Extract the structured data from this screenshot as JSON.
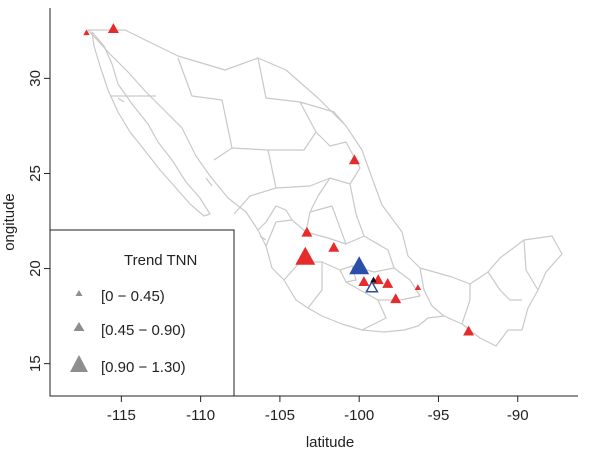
{
  "axes": {
    "xlabel": "latitude",
    "ylabel": "ongitude",
    "xlim": [
      -119.5,
      -86.2
    ],
    "ylim": [
      13.3,
      33.7
    ],
    "xticks": [
      "-115",
      "-110",
      "-105",
      "-100",
      "-95",
      "-90"
    ],
    "xtick_values": [
      -115,
      -110,
      -105,
      -100,
      -95,
      -90
    ],
    "yticks": [
      "15",
      "20",
      "25",
      "30"
    ],
    "ytick_values": [
      15,
      20,
      25,
      30
    ]
  },
  "legend": {
    "title": "Trend TNN",
    "entries": [
      {
        "label": "[0 − 0.45)",
        "size_class": "small"
      },
      {
        "label": "[0.45 − 0.90)",
        "size_class": "medium"
      },
      {
        "label": "[0.90 − 1.30)",
        "size_class": "large"
      }
    ],
    "placement": "bottom-left"
  },
  "colors": {
    "positive": "#e52b2b",
    "negative": "#2a4fa8",
    "legend_marker": "#8e8e8e",
    "border": "#c9c9c9"
  },
  "chart_data": {
    "type": "scatter",
    "title": "",
    "xlabel": "latitude",
    "ylabel": "ongitude",
    "marker": "triangle",
    "series": [
      {
        "name": "",
        "color": "#e52b2b",
        "points": [
          {
            "x": -117.2,
            "y": 32.4,
            "trend_class": "small"
          },
          {
            "x": -115.5,
            "y": 32.6,
            "trend_class": "medium"
          },
          {
            "x": -100.3,
            "y": 25.7,
            "trend_class": "medium"
          },
          {
            "x": -103.3,
            "y": 21.9,
            "trend_class": "medium"
          },
          {
            "x": -101.6,
            "y": 21.1,
            "trend_class": "medium"
          },
          {
            "x": -103.4,
            "y": 20.6,
            "trend_class": "large"
          },
          {
            "x": -99.7,
            "y": 19.3,
            "trend_class": "medium"
          },
          {
            "x": -98.8,
            "y": 19.4,
            "trend_class": "medium"
          },
          {
            "x": -98.2,
            "y": 19.2,
            "trend_class": "medium"
          },
          {
            "x": -97.7,
            "y": 18.4,
            "trend_class": "medium"
          },
          {
            "x": -96.3,
            "y": 19.0,
            "trend_class": "small"
          },
          {
            "x": -93.1,
            "y": 16.7,
            "trend_class": "medium"
          }
        ]
      },
      {
        "name": "",
        "color": "#2a4fa8",
        "points": [
          {
            "x": -100.0,
            "y": 20.1,
            "trend_class": "large"
          },
          {
            "x": -99.2,
            "y": 19.0,
            "trend_class": "medium",
            "hollow": true
          }
        ]
      },
      {
        "name": "",
        "color": "#111111",
        "points": [
          {
            "x": -99.1,
            "y": 19.4,
            "trend_class": "small"
          }
        ]
      }
    ]
  }
}
